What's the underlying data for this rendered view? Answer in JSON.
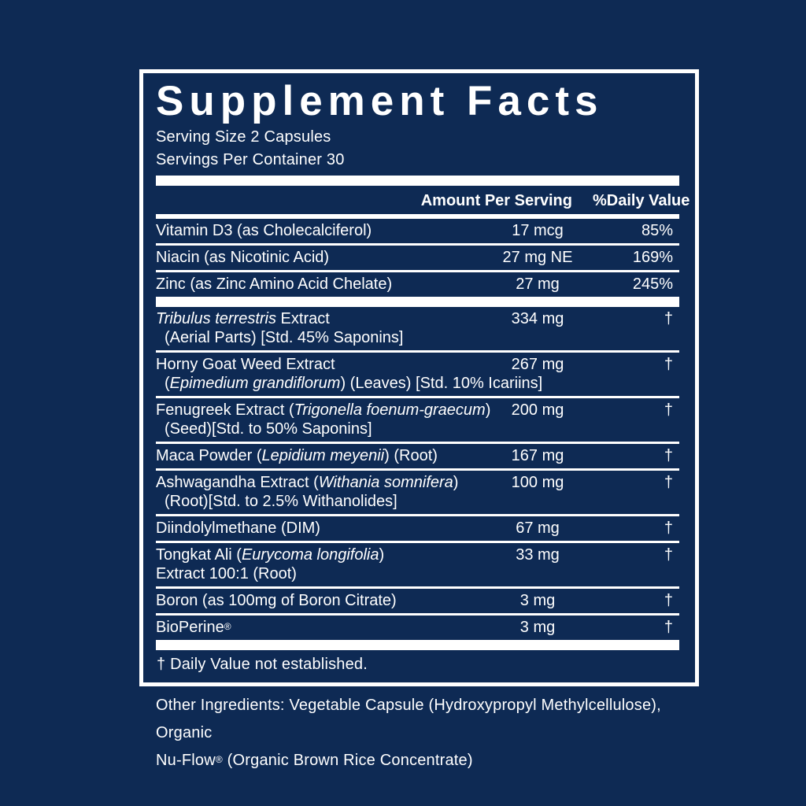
{
  "colors": {
    "background": "#0e2a54",
    "text": "#ffffff",
    "divider": "#ffffff",
    "panel_border": "#ffffff"
  },
  "label": {
    "title": "Supplement Facts",
    "serving_size": "Serving Size 2 Capsules",
    "servings_per_container": "Servings Per Container 30",
    "column_headers": {
      "amount": "Amount Per Serving",
      "daily_value": "%Daily Value"
    },
    "rows": [
      {
        "name_lines": [
          [
            {
              "t": "Vitamin D3 (as Cholecalciferol)"
            }
          ]
        ],
        "amount": "17 mcg",
        "daily_value": "85%"
      },
      {
        "name_lines": [
          [
            {
              "t": "Niacin (as Nicotinic Acid)"
            }
          ]
        ],
        "amount": "27 mg NE",
        "daily_value": "169%"
      },
      {
        "name_lines": [
          [
            {
              "t": "Zinc (as Zinc Amino Acid Chelate)"
            }
          ]
        ],
        "amount": "27 mg",
        "daily_value": "245%"
      },
      {
        "bar_before": true,
        "name_lines": [
          [
            {
              "t": "Tribulus terrestris",
              "i": true
            },
            {
              "t": " Extract"
            }
          ],
          [
            {
              "t": "(Aerial Parts) [Std. 45% Saponins]"
            }
          ]
        ],
        "indent_second_line": true,
        "amount": "334 mg",
        "daily_value": "†"
      },
      {
        "name_lines": [
          [
            {
              "t": "Horny Goat Weed Extract"
            }
          ],
          [
            {
              "t": "("
            },
            {
              "t": "Epimedium grandiflorum",
              "i": true
            },
            {
              "t": ") (Leaves) [Std. 10% Icariins]"
            }
          ]
        ],
        "indent_second_line": true,
        "amount": "267 mg",
        "daily_value": "†"
      },
      {
        "name_lines": [
          [
            {
              "t": "Fenugreek Extract ("
            },
            {
              "t": "Trigonella foenum-graecum",
              "i": true
            },
            {
              "t": ")"
            }
          ],
          [
            {
              "t": "(Seed)[Std. to 50% Saponins]"
            }
          ]
        ],
        "indent_second_line": true,
        "amount": "200 mg",
        "daily_value": "†"
      },
      {
        "name_lines": [
          [
            {
              "t": "Maca Powder ("
            },
            {
              "t": "Lepidium meyenii",
              "i": true
            },
            {
              "t": ") (Root)"
            }
          ]
        ],
        "amount": "167 mg",
        "daily_value": "†"
      },
      {
        "name_lines": [
          [
            {
              "t": "Ashwagandha Extract ("
            },
            {
              "t": "Withania somnifera",
              "i": true
            },
            {
              "t": ")"
            }
          ],
          [
            {
              "t": "(Root)[Std. to 2.5% Withanolides]"
            }
          ]
        ],
        "indent_second_line": true,
        "amount": "100 mg",
        "daily_value": "†"
      },
      {
        "name_lines": [
          [
            {
              "t": "Diindolylmethane (DIM)"
            }
          ]
        ],
        "amount": "67 mg",
        "daily_value": "†"
      },
      {
        "name_lines": [
          [
            {
              "t": "Tongkat Ali ("
            },
            {
              "t": "Eurycoma longifolia",
              "i": true
            },
            {
              "t": ")"
            }
          ],
          [
            {
              "t": "Extract 100:1 (Root)"
            }
          ]
        ],
        "indent_second_line": false,
        "amount": "33 mg",
        "daily_value": "†"
      },
      {
        "name_lines": [
          [
            {
              "t": "Boron (as 100mg of Boron Citrate)"
            }
          ]
        ],
        "amount": "3 mg",
        "daily_value": "†"
      },
      {
        "name_lines": [
          [
            {
              "t": "BioPerine®"
            }
          ]
        ],
        "amount": "3 mg",
        "daily_value": "†"
      }
    ],
    "footnote": "† Daily Value not established."
  },
  "other_ingredients": {
    "lines": [
      "Other Ingredients: Vegetable Capsule (Hydroxypropyl Methylcellulose), Organic",
      "Nu-Flow® (Organic Brown Rice Concentrate)"
    ]
  }
}
